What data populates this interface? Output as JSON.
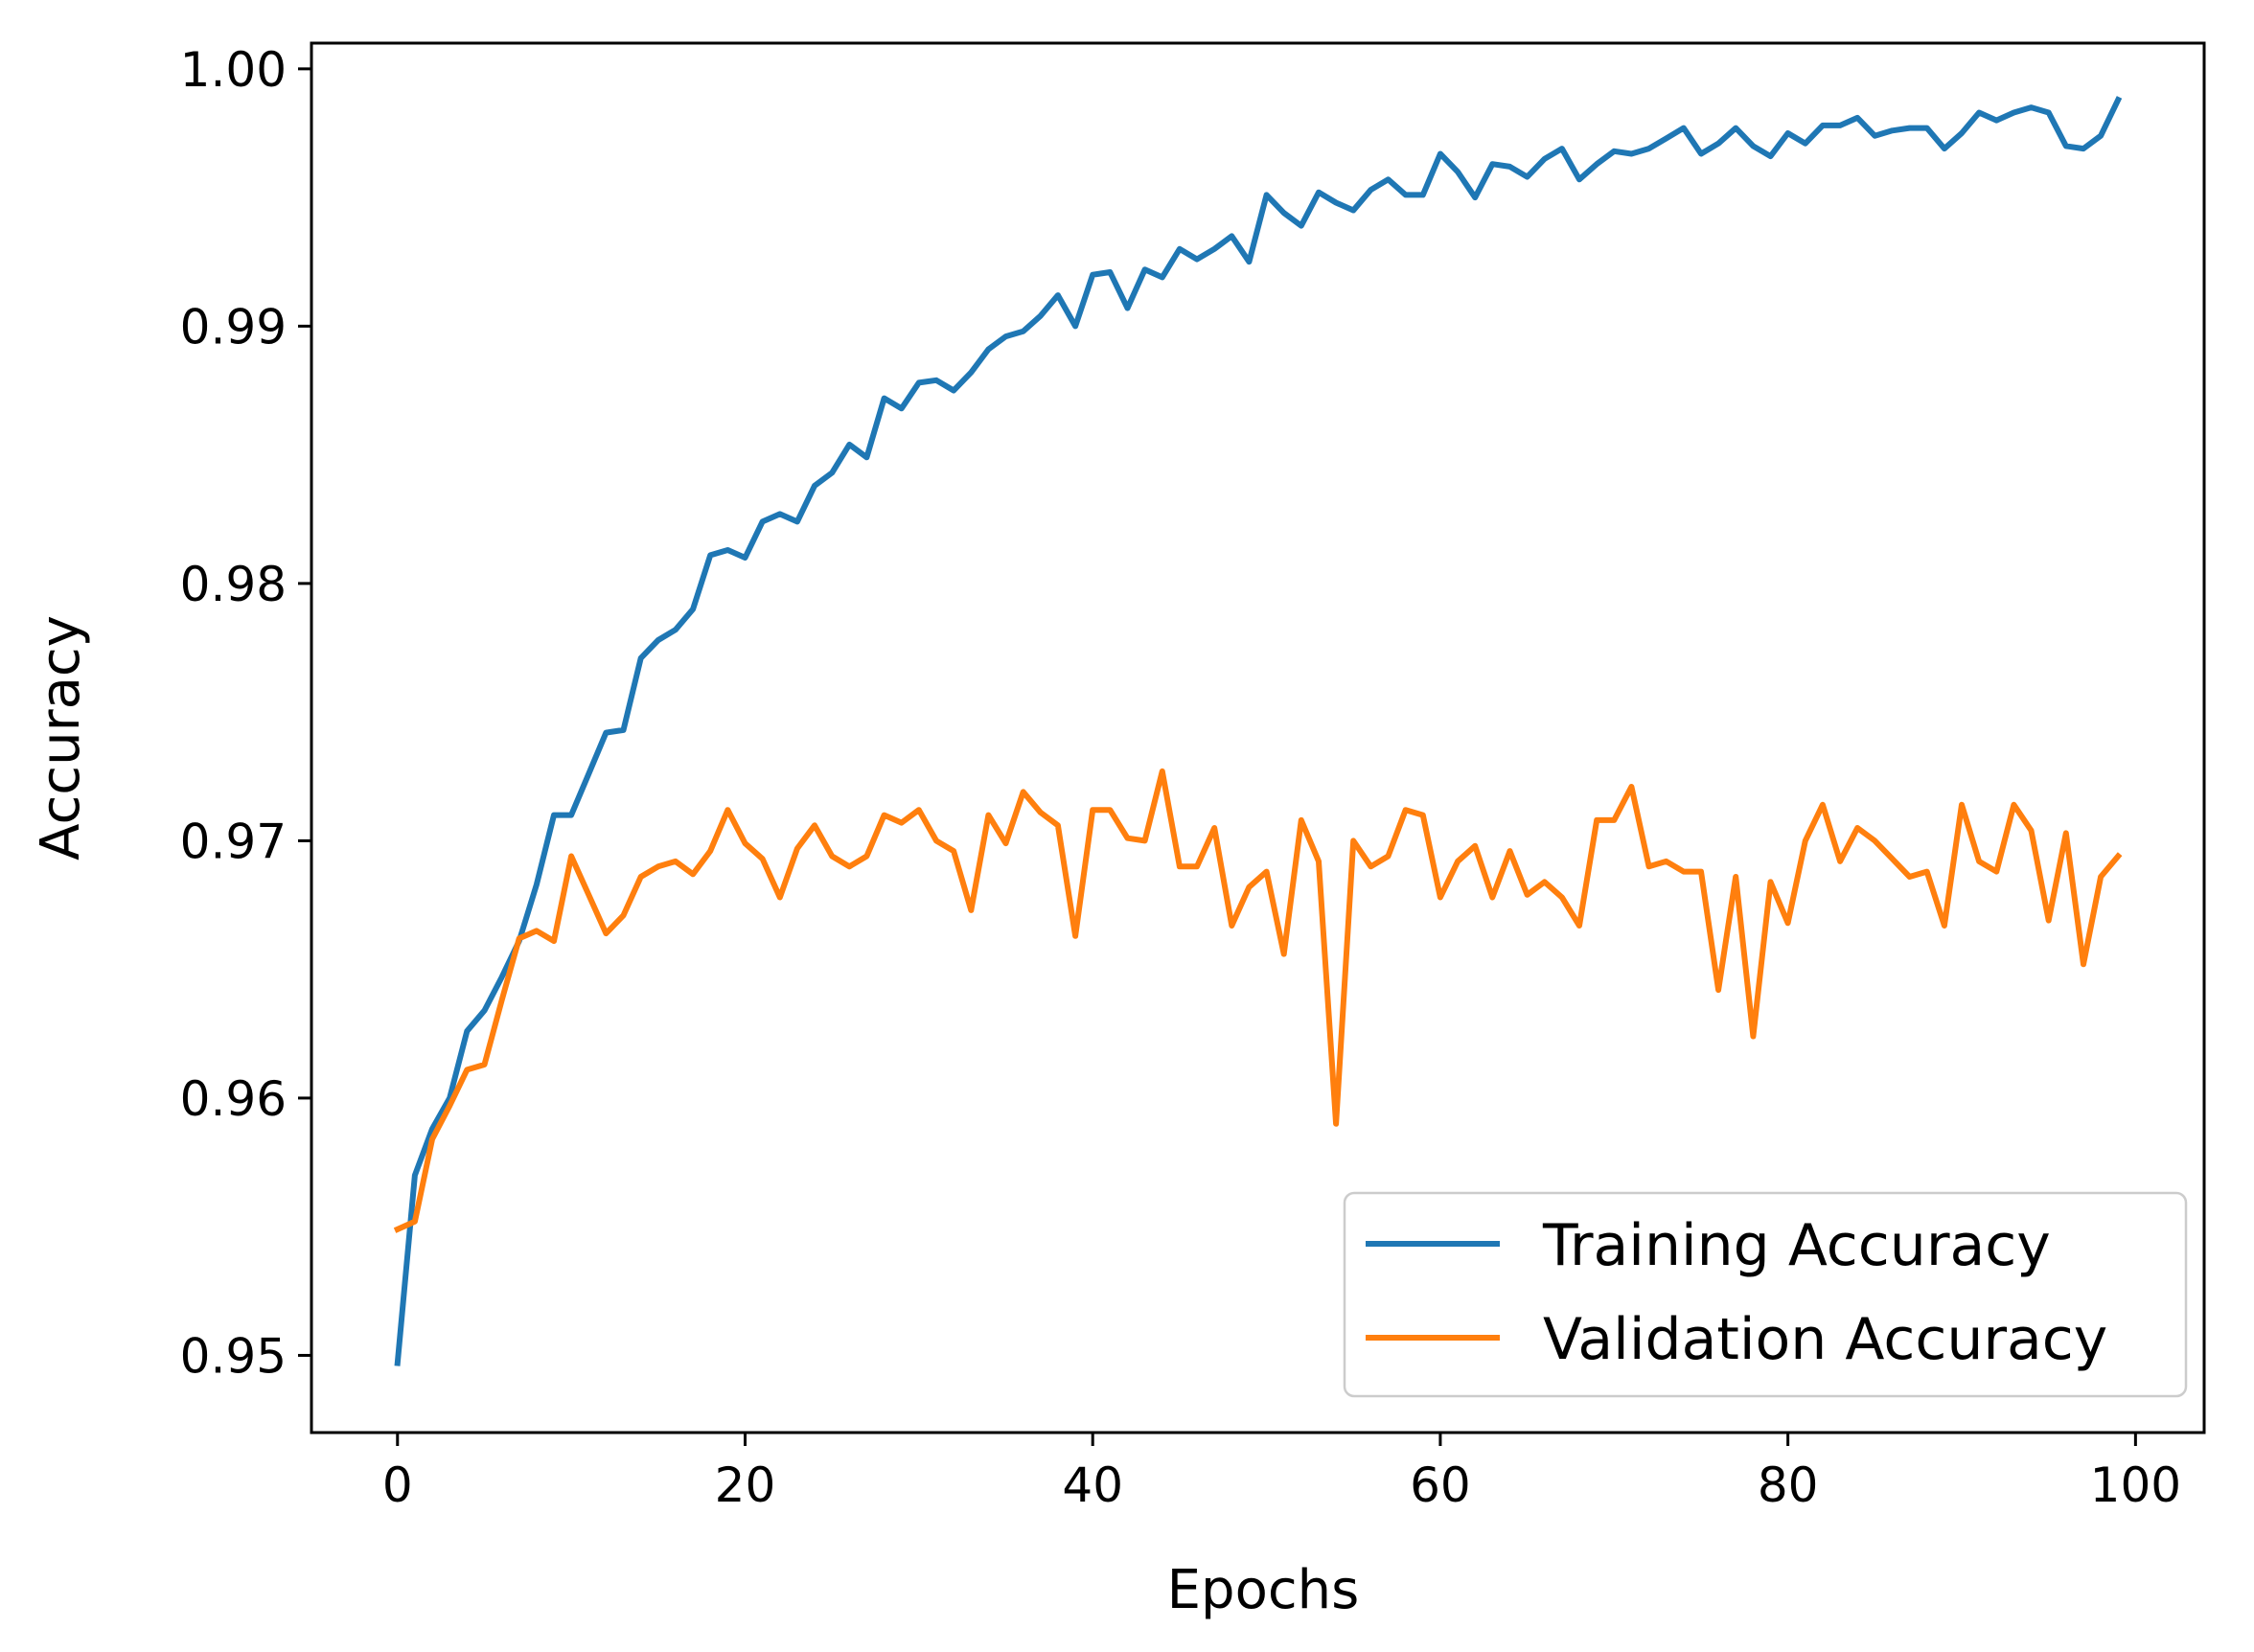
{
  "chart_data": {
    "type": "line",
    "xlabel": "Epochs",
    "ylabel": "Accuracy",
    "xlim": [
      -4.95,
      103.95
    ],
    "ylim": [
      0.947,
      1.001
    ],
    "xticks": [
      0,
      20,
      40,
      60,
      80,
      100
    ],
    "xtick_labels": [
      "0",
      "20",
      "40",
      "60",
      "80",
      "100"
    ],
    "yticks": [
      0.95,
      0.96,
      0.97,
      0.98,
      0.99,
      1.0
    ],
    "ytick_labels": [
      "0.95",
      "0.96",
      "0.97",
      "0.98",
      "0.99",
      "1.00"
    ],
    "grid": false,
    "legend_position": "lower-right",
    "series": [
      {
        "name": "Training Accuracy",
        "color": "#1f77b4",
        "values": [
          0.9497,
          0.957,
          0.9588,
          0.96,
          0.9626,
          0.9634,
          0.9647,
          0.9661,
          0.9683,
          0.971,
          0.971,
          0.9726,
          0.9742,
          0.9743,
          0.9771,
          0.9778,
          0.9782,
          0.979,
          0.9811,
          0.9813,
          0.981,
          0.9824,
          0.9827,
          0.9824,
          0.9838,
          0.9843,
          0.9854,
          0.9849,
          0.9872,
          0.9868,
          0.9878,
          0.9879,
          0.9875,
          0.9882,
          0.9891,
          0.9896,
          0.9898,
          0.9904,
          0.9912,
          0.99,
          0.992,
          0.9921,
          0.9907,
          0.9922,
          0.9919,
          0.993,
          0.9926,
          0.993,
          0.9935,
          0.9925,
          0.9951,
          0.9944,
          0.9939,
          0.9952,
          0.9948,
          0.9945,
          0.9953,
          0.9957,
          0.9951,
          0.9951,
          0.9967,
          0.996,
          0.995,
          0.9963,
          0.9962,
          0.9958,
          0.9965,
          0.9969,
          0.9957,
          0.9963,
          0.9968,
          0.9967,
          0.9969,
          0.9973,
          0.9977,
          0.9967,
          0.9971,
          0.9977,
          0.997,
          0.9966,
          0.9975,
          0.9971,
          0.9978,
          0.9978,
          0.9981,
          0.9974,
          0.9976,
          0.9977,
          0.9977,
          0.9969,
          0.9975,
          0.9983,
          0.998,
          0.9983,
          0.9985,
          0.9983,
          0.997,
          0.9969,
          0.9974,
          0.9988
        ]
      },
      {
        "name": "Validation Accuracy",
        "color": "#ff7f0e",
        "values": [
          0.9549,
          0.9552,
          0.9584,
          0.9597,
          0.9611,
          0.9613,
          0.9638,
          0.9662,
          0.9665,
          0.9661,
          0.9694,
          0.9679,
          0.9664,
          0.9671,
          0.9686,
          0.969,
          0.9692,
          0.9687,
          0.9696,
          0.9712,
          0.9699,
          0.9693,
          0.9678,
          0.9697,
          0.9706,
          0.9694,
          0.969,
          0.9694,
          0.971,
          0.9707,
          0.9712,
          0.97,
          0.9696,
          0.9673,
          0.971,
          0.9699,
          0.9719,
          0.9711,
          0.9706,
          0.9663,
          0.9712,
          0.9712,
          0.9701,
          0.97,
          0.9727,
          0.969,
          0.969,
          0.9705,
          0.9667,
          0.9682,
          0.9688,
          0.9656,
          0.9708,
          0.9692,
          0.959,
          0.97,
          0.969,
          0.9694,
          0.9712,
          0.971,
          0.9678,
          0.9692,
          0.9698,
          0.9678,
          0.9696,
          0.9679,
          0.9684,
          0.9678,
          0.9667,
          0.9708,
          0.9708,
          0.9721,
          0.969,
          0.9692,
          0.9688,
          0.9688,
          0.9642,
          0.9686,
          0.9624,
          0.9684,
          0.9668,
          0.97,
          0.9714,
          0.9692,
          0.9705,
          0.97,
          0.9693,
          0.9686,
          0.9688,
          0.9667,
          0.9714,
          0.9692,
          0.9688,
          0.9714,
          0.9704,
          0.9669,
          0.9703,
          0.9652,
          0.9686,
          0.9694
        ]
      }
    ]
  }
}
